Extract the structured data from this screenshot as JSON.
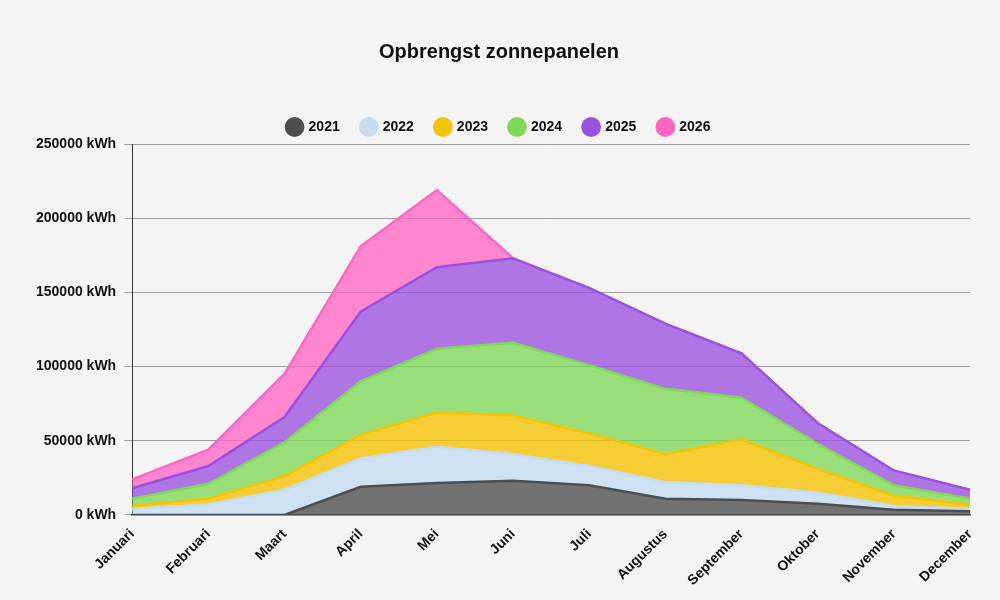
{
  "chart_data": {
    "type": "area",
    "title": "Opbrengst zonnepanelen",
    "categories": [
      "Januari",
      "Februari",
      "Maart",
      "April",
      "Mei",
      "Juni",
      "Juli",
      "Augustus",
      "September",
      "Oktober",
      "November",
      "December"
    ],
    "series": [
      {
        "name": "2021",
        "color": "#4d4d4d",
        "values": [
          0,
          0,
          0,
          19000,
          21500,
          23000,
          20000,
          11000,
          10000,
          7500,
          3500,
          2500
        ]
      },
      {
        "name": "2022",
        "color": "#c4ddf3",
        "values": [
          4000,
          7000,
          17000,
          19000,
          24500,
          18000,
          13000,
          11000,
          10000,
          7500,
          2500,
          1500
        ]
      },
      {
        "name": "2023",
        "color": "#f7c200",
        "values": [
          2000,
          4000,
          9000,
          16000,
          23000,
          26000,
          22000,
          19000,
          31000,
          16000,
          7000,
          3000
        ]
      },
      {
        "name": "2024",
        "color": "#7ed957",
        "values": [
          5000,
          10000,
          23000,
          36000,
          43000,
          49000,
          46000,
          44000,
          28000,
          17000,
          7000,
          4000
        ]
      },
      {
        "name": "2025",
        "color": "#9b51e0",
        "values": [
          7000,
          12000,
          17000,
          47000,
          55000,
          57000,
          52000,
          44000,
          30000,
          14000,
          10000,
          6000
        ]
      },
      {
        "name": "2026",
        "color": "#ff66c4",
        "values": [
          6000,
          11000,
          29000,
          44000,
          52000,
          0,
          null,
          null,
          null,
          null,
          null,
          null
        ]
      }
    ],
    "ylim": [
      0,
      250000
    ],
    "yticks": [
      {
        "value": 0,
        "label": "0 kWh"
      },
      {
        "value": 50000,
        "label": "50000 kWh"
      },
      {
        "value": 100000,
        "label": "100000 kWh"
      },
      {
        "value": 150000,
        "label": "150000 kWh"
      },
      {
        "value": 200000,
        "label": "200000 kWh"
      },
      {
        "value": 250000,
        "label": "250000 kWh"
      }
    ],
    "stacked": true,
    "grid": true,
    "legend": "top"
  }
}
